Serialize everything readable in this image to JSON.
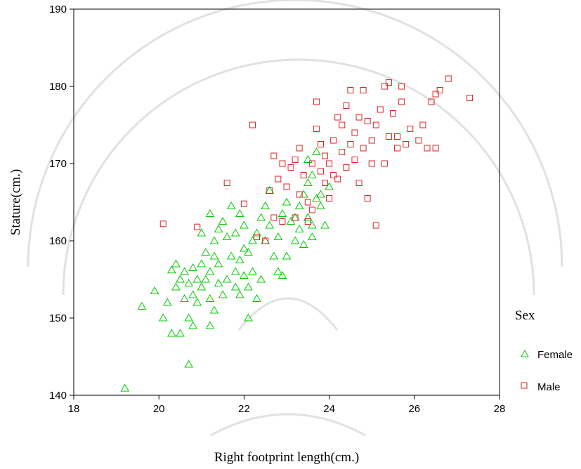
{
  "chart_data": {
    "type": "scatter",
    "xlabel": "Right footprint length(cm.)",
    "ylabel": "Stature(cm.)",
    "xlim": [
      18,
      28
    ],
    "ylim": [
      140,
      190
    ],
    "x_ticks": [
      "18",
      "20",
      "22",
      "24",
      "26",
      "28"
    ],
    "y_ticks": [
      "140",
      "150",
      "160",
      "170",
      "180",
      "190"
    ],
    "grid": false,
    "legend": {
      "title": "Sex",
      "placement": "right",
      "entries": [
        "Female",
        "Male"
      ]
    },
    "series": [
      {
        "name": "Female",
        "marker": "triangle",
        "color": "#00cc00",
        "points": [
          [
            19.2,
            140.9
          ],
          [
            20.7,
            144.0
          ],
          [
            19.6,
            151.5
          ],
          [
            19.9,
            153.5
          ],
          [
            20.1,
            150.0
          ],
          [
            20.3,
            148.0
          ],
          [
            20.5,
            148.0
          ],
          [
            20.2,
            152.0
          ],
          [
            20.3,
            156.2
          ],
          [
            20.4,
            157.0
          ],
          [
            20.5,
            155.0
          ],
          [
            20.6,
            156.0
          ],
          [
            20.7,
            154.5
          ],
          [
            20.8,
            156.5
          ],
          [
            20.9,
            155.0
          ],
          [
            20.6,
            152.5
          ],
          [
            20.7,
            150.0
          ],
          [
            20.8,
            149.0
          ],
          [
            20.9,
            152.0
          ],
          [
            21.0,
            154.0
          ],
          [
            21.0,
            157.0
          ],
          [
            21.1,
            158.5
          ],
          [
            21.2,
            156.0
          ],
          [
            21.3,
            158.0
          ],
          [
            21.4,
            157.0
          ],
          [
            21.2,
            152.5
          ],
          [
            21.3,
            151.0
          ],
          [
            21.2,
            149.0
          ],
          [
            21.5,
            153.0
          ],
          [
            21.6,
            155.0
          ],
          [
            21.0,
            161.0
          ],
          [
            21.2,
            163.5
          ],
          [
            21.3,
            160.0
          ],
          [
            21.4,
            161.5
          ],
          [
            21.5,
            162.5
          ],
          [
            21.6,
            160.5
          ],
          [
            21.7,
            164.5
          ],
          [
            21.8,
            161.0
          ],
          [
            21.9,
            163.5
          ],
          [
            22.0,
            162.0
          ],
          [
            21.7,
            158.0
          ],
          [
            21.8,
            156.0
          ],
          [
            21.9,
            157.5
          ],
          [
            22.0,
            159.0
          ],
          [
            22.1,
            158.5
          ],
          [
            21.8,
            154.0
          ],
          [
            21.9,
            153.0
          ],
          [
            22.0,
            155.5
          ],
          [
            22.1,
            154.0
          ],
          [
            22.2,
            156.0
          ],
          [
            22.1,
            150.0
          ],
          [
            22.3,
            152.5
          ],
          [
            22.2,
            160.0
          ],
          [
            22.3,
            161.0
          ],
          [
            22.4,
            163.0
          ],
          [
            22.5,
            164.5
          ],
          [
            22.5,
            160.0
          ],
          [
            22.6,
            162.0
          ],
          [
            22.7,
            158.0
          ],
          [
            22.8,
            160.5
          ],
          [
            22.8,
            156.0
          ],
          [
            22.9,
            155.5
          ],
          [
            22.6,
            166.5
          ],
          [
            22.9,
            163.5
          ],
          [
            23.0,
            165.0
          ],
          [
            23.1,
            162.5
          ],
          [
            23.0,
            158.0
          ],
          [
            23.2,
            160.0
          ],
          [
            23.3,
            161.5
          ],
          [
            23.4,
            159.5
          ],
          [
            23.2,
            163.0
          ],
          [
            23.3,
            164.5
          ],
          [
            23.4,
            166.0
          ],
          [
            23.5,
            167.5
          ],
          [
            23.6,
            168.5
          ],
          [
            23.7,
            165.5
          ],
          [
            23.5,
            163.0
          ],
          [
            23.6,
            162.0
          ],
          [
            23.8,
            166.0
          ],
          [
            23.9,
            162.0
          ],
          [
            23.7,
            171.5
          ],
          [
            23.5,
            170.5
          ],
          [
            23.6,
            160.5
          ],
          [
            23.8,
            164.5
          ],
          [
            24.0,
            167.0
          ],
          [
            20.4,
            154.0
          ],
          [
            20.8,
            153.0
          ],
          [
            21.1,
            155.0
          ],
          [
            21.4,
            154.5
          ],
          [
            22.4,
            155.0
          ]
        ]
      },
      {
        "name": "Male",
        "marker": "square",
        "color": "#dd2222",
        "points": [
          [
            20.1,
            162.2
          ],
          [
            20.9,
            161.8
          ],
          [
            21.6,
            167.5
          ],
          [
            22.0,
            164.8
          ],
          [
            22.2,
            175.0
          ],
          [
            22.3,
            160.5
          ],
          [
            22.5,
            160.0
          ],
          [
            22.6,
            166.5
          ],
          [
            22.7,
            163.0
          ],
          [
            22.7,
            171.0
          ],
          [
            22.8,
            168.0
          ],
          [
            22.9,
            170.0
          ],
          [
            22.9,
            162.5
          ],
          [
            23.0,
            167.0
          ],
          [
            23.1,
            169.5
          ],
          [
            23.2,
            163.0
          ],
          [
            23.2,
            170.5
          ],
          [
            23.3,
            166.0
          ],
          [
            23.3,
            172.0
          ],
          [
            23.4,
            168.5
          ],
          [
            23.5,
            165.0
          ],
          [
            23.5,
            162.5
          ],
          [
            23.6,
            170.0
          ],
          [
            23.7,
            174.5
          ],
          [
            23.7,
            178.0
          ],
          [
            23.8,
            169.0
          ],
          [
            23.8,
            172.5
          ],
          [
            23.9,
            167.5
          ],
          [
            23.9,
            171.0
          ],
          [
            24.0,
            165.5
          ],
          [
            24.0,
            170.0
          ],
          [
            24.1,
            173.0
          ],
          [
            24.2,
            176.0
          ],
          [
            24.2,
            168.0
          ],
          [
            24.3,
            171.5
          ],
          [
            24.3,
            175.0
          ],
          [
            24.4,
            169.5
          ],
          [
            24.4,
            177.5
          ],
          [
            24.5,
            172.5
          ],
          [
            24.5,
            179.5
          ],
          [
            24.6,
            174.0
          ],
          [
            24.6,
            170.5
          ],
          [
            24.7,
            176.0
          ],
          [
            24.7,
            167.5
          ],
          [
            24.8,
            172.0
          ],
          [
            24.8,
            179.5
          ],
          [
            24.9,
            175.5
          ],
          [
            25.0,
            173.0
          ],
          [
            25.0,
            170.0
          ],
          [
            25.1,
            175.0
          ],
          [
            25.1,
            162.0
          ],
          [
            25.2,
            177.0
          ],
          [
            25.3,
            180.0
          ],
          [
            25.3,
            170.0
          ],
          [
            25.4,
            180.5
          ],
          [
            25.4,
            173.5
          ],
          [
            25.5,
            176.5
          ],
          [
            25.6,
            173.5
          ],
          [
            25.7,
            178.0
          ],
          [
            25.7,
            180.0
          ],
          [
            25.8,
            172.5
          ],
          [
            25.9,
            174.5
          ],
          [
            26.1,
            173.0
          ],
          [
            26.2,
            175.0
          ],
          [
            26.3,
            172.0
          ],
          [
            26.4,
            178.0
          ],
          [
            26.5,
            179.0
          ],
          [
            26.6,
            179.5
          ],
          [
            26.8,
            181.0
          ],
          [
            27.3,
            178.5
          ],
          [
            26.5,
            172.0
          ],
          [
            25.6,
            172.0
          ],
          [
            24.9,
            165.5
          ],
          [
            23.6,
            164.0
          ],
          [
            24.1,
            168.5
          ]
        ]
      }
    ]
  },
  "page": {
    "ylabel": "Stature(cm.)",
    "xlabel": "Right footprint length(cm.)",
    "legend_title": "Sex",
    "legend_female": "Female",
    "legend_male": "Male"
  }
}
